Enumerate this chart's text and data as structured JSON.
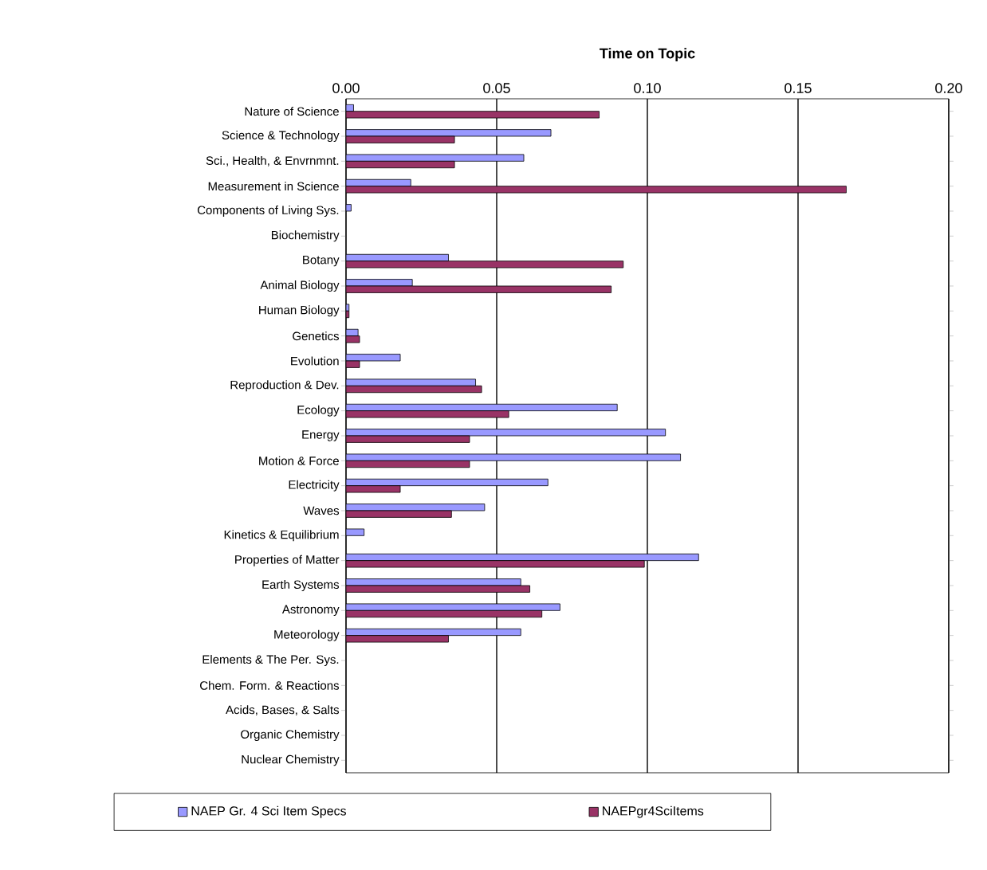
{
  "chart_data": {
    "type": "bar",
    "orientation": "horizontal",
    "title": "Time on Topic",
    "categories": [
      "Nature of Science",
      "Science & Technology",
      "Sci., Health, & Envrnmnt.",
      "Measurement in Science",
      "Components of Living Sys.",
      "Biochemistry",
      "Botany",
      "Animal Biology",
      "Human Biology",
      "Genetics",
      "Evolution",
      "Reproduction & Dev.",
      "Ecology",
      "Energy",
      "Motion & Force",
      "Electricity",
      "Waves",
      "Kinetics & Equilibrium",
      "Properties of Matter",
      "Earth Systems",
      "Astronomy",
      "Meteorology",
      "Elements & The Per. Sys.",
      "Chem. Form. & Reactions",
      "Acids, Bases, & Salts",
      "Organic Chemistry",
      "Nuclear Chemistry"
    ],
    "series": [
      {
        "name": "NAEP Gr. 4 Sci Item Specs",
        "color": "#9999ff",
        "values": [
          0.0025,
          0.068,
          0.059,
          0.0215,
          0.0017,
          0,
          0.034,
          0.022,
          0.001,
          0.004,
          0.018,
          0.043,
          0.09,
          0.106,
          0.111,
          0.067,
          0.046,
          0.006,
          0.117,
          0.058,
          0.071,
          0.058,
          0,
          0,
          0,
          0,
          0
        ]
      },
      {
        "name": "NAEPgr4SciItems",
        "color": "#993366",
        "values": [
          0.084,
          0.036,
          0.036,
          0.166,
          0,
          0,
          0.092,
          0.088,
          0.001,
          0.0045,
          0.0045,
          0.045,
          0.054,
          0.041,
          0.041,
          0.018,
          0.035,
          0,
          0.099,
          0.061,
          0.065,
          0.034,
          0,
          0,
          0,
          0,
          0
        ]
      }
    ],
    "xlim": [
      0,
      0.2
    ],
    "xticks": [
      {
        "value": 0,
        "label": "0.00"
      },
      {
        "value": 0.05,
        "label": "0.05"
      },
      {
        "value": 0.1,
        "label": "0.10"
      },
      {
        "value": 0.15,
        "label": "0.15"
      },
      {
        "value": 0.2,
        "label": "0.20"
      }
    ],
    "grid": "x",
    "legend": "bottom"
  }
}
